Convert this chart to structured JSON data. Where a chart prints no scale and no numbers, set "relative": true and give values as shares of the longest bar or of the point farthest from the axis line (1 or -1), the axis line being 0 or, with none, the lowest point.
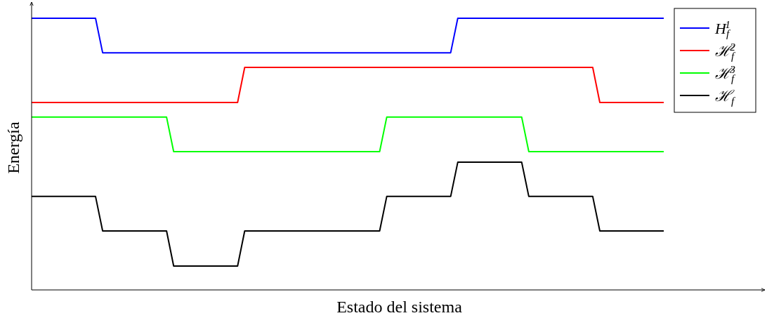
{
  "chart_data": {
    "type": "line",
    "relative": true,
    "xlabel": "Estado del sistema",
    "ylabel": "Energía",
    "legend": "top right",
    "marker": "none",
    "line_style": "solid",
    "categories": [
      null,
      null,
      null,
      null,
      null,
      null,
      null,
      null,
      null,
      null,
      null,
      null,
      null,
      null,
      null,
      null,
      null,
      null,
      null,
      null,
      null,
      null,
      null,
      null,
      null,
      null,
      null,
      null,
      null,
      null,
      null,
      null,
      null,
      null,
      null,
      null,
      null,
      null,
      null,
      null,
      null,
      null,
      null,
      null,
      null,
      null,
      null,
      null,
      null,
      null,
      null,
      null,
      null,
      null,
      null,
      null,
      null,
      null,
      null,
      null,
      null,
      null,
      null,
      null,
      null,
      null,
      null,
      null,
      null,
      null,
      null,
      null,
      null,
      null,
      null,
      null,
      null,
      null,
      null,
      null,
      null,
      null,
      null,
      null,
      null,
      null,
      null,
      null,
      null,
      null
    ],
    "series": [
      {
        "name": "H$_{f}$$^{1}$",
        "color": "#0000ff",
        "values": [
          1,
          1,
          1,
          1,
          1,
          1,
          1,
          1,
          1,
          1,
          0.873,
          0.873,
          0.873,
          0.873,
          0.873,
          0.873,
          0.873,
          0.873,
          0.873,
          0.873,
          0.873,
          0.873,
          0.873,
          0.873,
          0.873,
          0.873,
          0.873,
          0.873,
          0.873,
          0.873,
          0.873,
          0.873,
          0.873,
          0.873,
          0.873,
          0.873,
          0.873,
          0.873,
          0.873,
          0.873,
          0.873,
          0.873,
          0.873,
          0.873,
          0.873,
          0.873,
          0.873,
          0.873,
          0.873,
          0.873,
          0.873,
          0.873,
          0.873,
          0.873,
          0.873,
          0.873,
          0.873,
          0.873,
          0.873,
          0.873,
          1,
          1,
          1,
          1,
          1,
          1,
          1,
          1,
          1,
          1,
          1,
          1,
          1,
          1,
          1,
          1,
          1,
          1,
          1,
          1,
          1,
          1,
          1,
          1,
          1,
          1,
          1,
          1,
          1,
          1
        ]
      },
      {
        "name": "ℋ$_{f}$$^{2}$",
        "color": "#ff0000",
        "values": [
          0.69,
          0.69,
          0.69,
          0.69,
          0.69,
          0.69,
          0.69,
          0.69,
          0.69,
          0.69,
          0.69,
          0.69,
          0.69,
          0.69,
          0.69,
          0.69,
          0.69,
          0.69,
          0.69,
          0.69,
          0.69,
          0.69,
          0.69,
          0.69,
          0.69,
          0.69,
          0.69,
          0.69,
          0.69,
          0.69,
          0.819,
          0.819,
          0.819,
          0.819,
          0.819,
          0.819,
          0.819,
          0.819,
          0.819,
          0.819,
          0.819,
          0.819,
          0.819,
          0.819,
          0.819,
          0.819,
          0.819,
          0.819,
          0.819,
          0.819,
          0.819,
          0.819,
          0.819,
          0.819,
          0.819,
          0.819,
          0.819,
          0.819,
          0.819,
          0.819,
          0.819,
          0.819,
          0.819,
          0.819,
          0.819,
          0.819,
          0.819,
          0.819,
          0.819,
          0.819,
          0.819,
          0.819,
          0.819,
          0.819,
          0.819,
          0.819,
          0.819,
          0.819,
          0.819,
          0.819,
          0.69,
          0.69,
          0.69,
          0.69,
          0.69,
          0.69,
          0.69,
          0.69,
          0.69,
          0.69
        ]
      },
      {
        "name": "ℋ$_{f}$$^{3}$",
        "color": "#00ff00",
        "values": [
          0.636,
          0.636,
          0.636,
          0.636,
          0.636,
          0.636,
          0.636,
          0.636,
          0.636,
          0.636,
          0.636,
          0.636,
          0.636,
          0.636,
          0.636,
          0.636,
          0.636,
          0.636,
          0.636,
          0.636,
          0.509,
          0.509,
          0.509,
          0.509,
          0.509,
          0.509,
          0.509,
          0.509,
          0.509,
          0.509,
          0.509,
          0.509,
          0.509,
          0.509,
          0.509,
          0.509,
          0.509,
          0.509,
          0.509,
          0.509,
          0.509,
          0.509,
          0.509,
          0.509,
          0.509,
          0.509,
          0.509,
          0.509,
          0.509,
          0.509,
          0.636,
          0.636,
          0.636,
          0.636,
          0.636,
          0.636,
          0.636,
          0.636,
          0.636,
          0.636,
          0.636,
          0.636,
          0.636,
          0.636,
          0.636,
          0.636,
          0.636,
          0.636,
          0.636,
          0.636,
          0.509,
          0.509,
          0.509,
          0.509,
          0.509,
          0.509,
          0.509,
          0.509,
          0.509,
          0.509,
          0.509,
          0.509,
          0.509,
          0.509,
          0.509,
          0.509,
          0.509,
          0.509,
          0.509,
          0.509
        ]
      },
      {
        "name": "ℋ$_{f}$",
        "color": "#000000",
        "values": [
          0.344,
          0.344,
          0.344,
          0.344,
          0.344,
          0.344,
          0.344,
          0.344,
          0.344,
          0.344,
          0.217,
          0.217,
          0.217,
          0.217,
          0.217,
          0.217,
          0.217,
          0.217,
          0.217,
          0.217,
          0.088,
          0.088,
          0.088,
          0.088,
          0.088,
          0.088,
          0.088,
          0.088,
          0.088,
          0.088,
          0.217,
          0.217,
          0.217,
          0.217,
          0.217,
          0.217,
          0.217,
          0.217,
          0.217,
          0.217,
          0.217,
          0.217,
          0.217,
          0.217,
          0.217,
          0.217,
          0.217,
          0.217,
          0.217,
          0.217,
          0.344,
          0.344,
          0.344,
          0.344,
          0.344,
          0.344,
          0.344,
          0.344,
          0.344,
          0.344,
          0.47,
          0.47,
          0.47,
          0.47,
          0.47,
          0.47,
          0.47,
          0.47,
          0.47,
          0.47,
          0.344,
          0.344,
          0.344,
          0.344,
          0.344,
          0.344,
          0.344,
          0.344,
          0.344,
          0.344,
          0.217,
          0.217,
          0.217,
          0.217,
          0.217,
          0.217,
          0.217,
          0.217,
          0.217,
          0.217
        ]
      }
    ]
  }
}
